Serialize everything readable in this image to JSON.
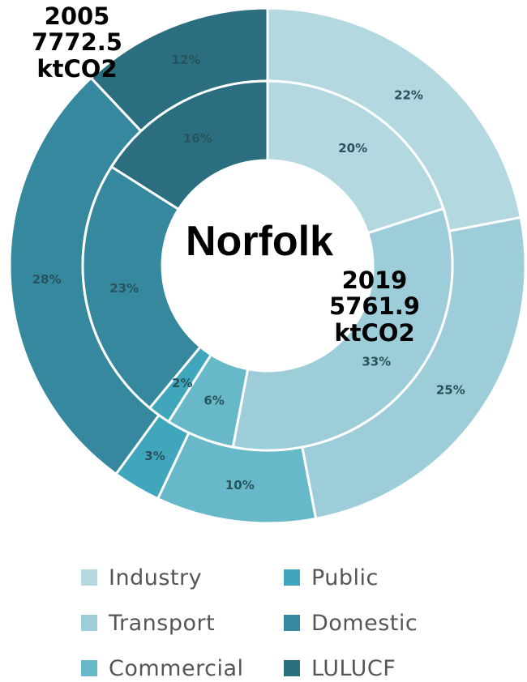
{
  "chart_data": {
    "type": "pie",
    "subtype": "nested-donut",
    "title": "Norfolk",
    "categories": [
      "Industry",
      "Transport",
      "Commercial",
      "Public",
      "Domestic",
      "LULUCF"
    ],
    "colors": [
      "#b4d8e0",
      "#9ccdd8",
      "#67b8c9",
      "#3fa6bb",
      "#35889e",
      "#2a6e80"
    ],
    "outer_ring": {
      "year_label": [
        "2005",
        "7772.5",
        "ktCO2"
      ],
      "values": [
        22,
        25,
        10,
        3,
        28,
        12
      ],
      "labels": [
        "22%",
        "25%",
        "10%",
        "3%",
        "28%",
        "12%"
      ]
    },
    "inner_ring": {
      "year_label": [
        "2019",
        "5761.9",
        "ktCO2"
      ],
      "values": [
        20,
        33,
        6,
        2,
        23,
        16
      ],
      "labels": [
        "20%",
        "33%",
        "6%",
        "2%",
        "23%",
        "16%"
      ]
    },
    "legend": [
      "Industry",
      "Transport",
      "Commercial",
      "Public",
      "Domestic",
      "LULUCF"
    ],
    "legend_position": "bottom"
  }
}
